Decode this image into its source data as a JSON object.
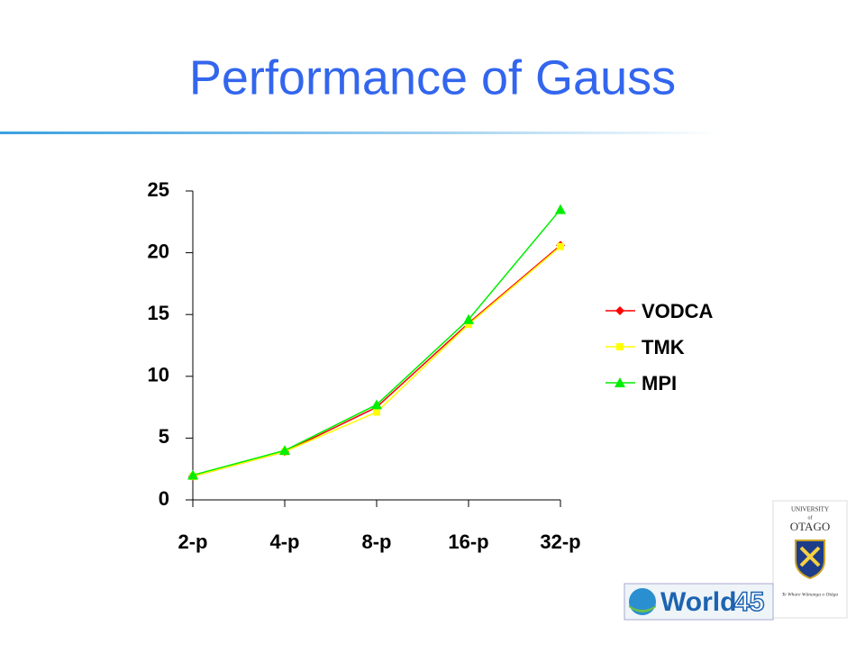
{
  "chart_data": {
    "type": "line",
    "title": "Performance of Gauss",
    "categories": [
      "2-p",
      "4-p",
      "8-p",
      "16-p",
      "32-p"
    ],
    "series": [
      {
        "name": "VODCA",
        "color": "#ff0000",
        "marker": "diamond",
        "values": [
          1.9,
          3.9,
          7.5,
          14.3,
          20.6
        ]
      },
      {
        "name": "TMK",
        "color": "#ffff00",
        "marker": "square",
        "values": [
          1.9,
          3.9,
          7.1,
          14.2,
          20.5
        ]
      },
      {
        "name": "MPI",
        "color": "#00ee00",
        "marker": "triangle",
        "values": [
          2.0,
          4.0,
          7.7,
          14.6,
          23.5
        ]
      }
    ],
    "ylim": [
      0,
      25
    ],
    "yticks": [
      0,
      5,
      10,
      15,
      20,
      25
    ],
    "grid": false,
    "legend": "right"
  },
  "logos": {
    "university": "UNIVERSITY",
    "of": "of",
    "otago": "OTAGO",
    "motto": "Te Whare Wānanga o Otāgo",
    "world": "World",
    "world_number": "45"
  }
}
